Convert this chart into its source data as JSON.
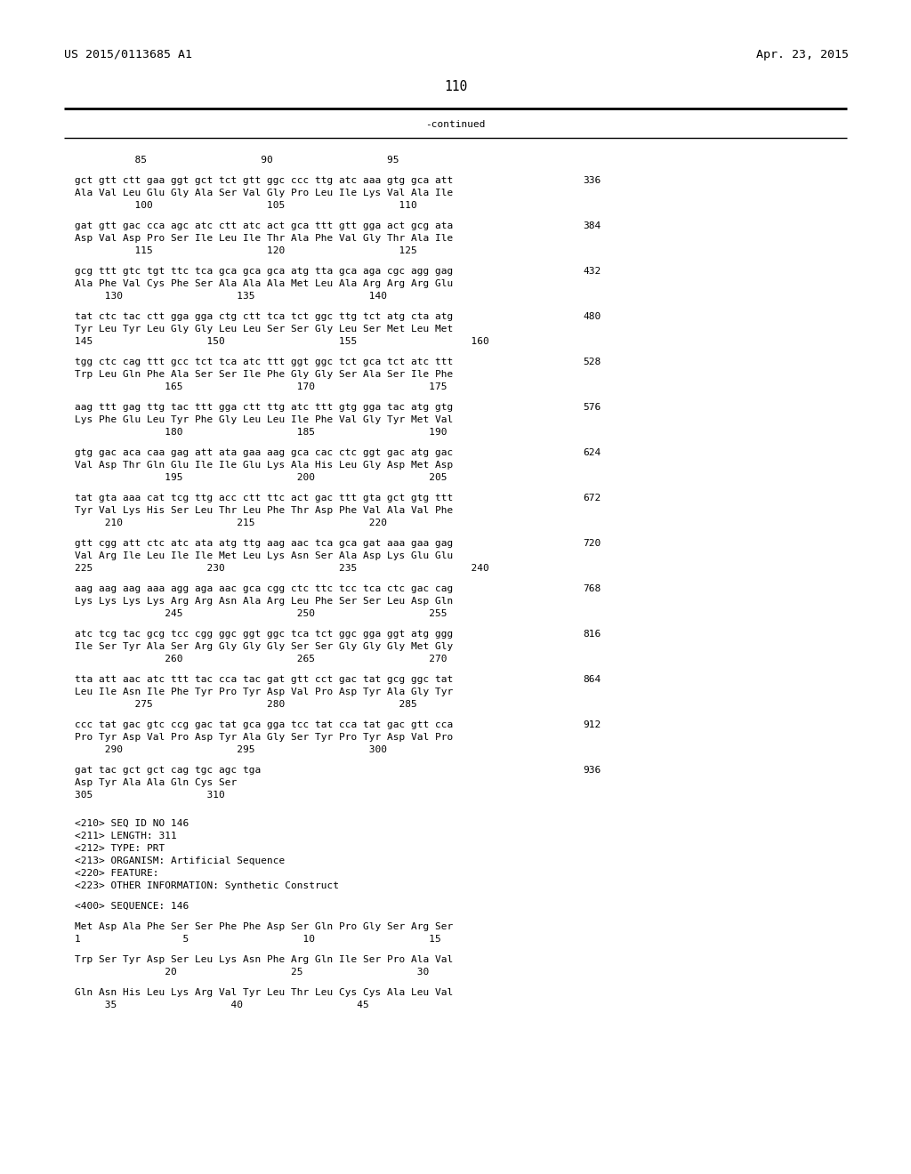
{
  "header_left": "US 2015/0113685 A1",
  "header_right": "Apr. 23, 2015",
  "page_number": "110",
  "continued_label": "-continued",
  "background_color": "#ffffff",
  "text_color": "#000000",
  "lines": [
    {
      "t": "ruler",
      "text": "          85                   90                   95"
    },
    {
      "t": "blank"
    },
    {
      "t": "seq",
      "text": "gct gtt ctt gaa ggt gct tct gtt ggc ccc ttg atc aaa gtg gca att",
      "num": "336"
    },
    {
      "t": "aa",
      "text": "Ala Val Leu Glu Gly Ala Ser Val Gly Pro Leu Ile Lys Val Ala Ile"
    },
    {
      "t": "pos",
      "text": "          100                   105                   110"
    },
    {
      "t": "blank"
    },
    {
      "t": "seq",
      "text": "gat gtt gac cca agc atc ctt atc act gca ttt gtt gga act gcg ata",
      "num": "384"
    },
    {
      "t": "aa",
      "text": "Asp Val Asp Pro Ser Ile Leu Ile Thr Ala Phe Val Gly Thr Ala Ile"
    },
    {
      "t": "pos",
      "text": "          115                   120                   125"
    },
    {
      "t": "blank"
    },
    {
      "t": "seq",
      "text": "gcg ttt gtc tgt ttc tca gca gca gca atg tta gca aga cgc agg gag",
      "num": "432"
    },
    {
      "t": "aa",
      "text": "Ala Phe Val Cys Phe Ser Ala Ala Ala Met Leu Ala Arg Arg Arg Glu"
    },
    {
      "t": "pos",
      "text": "     130                   135                   140"
    },
    {
      "t": "blank"
    },
    {
      "t": "seq",
      "text": "tat ctc tac ctt gga gga ctg ctt tca tct ggc ttg tct atg cta atg",
      "num": "480"
    },
    {
      "t": "aa",
      "text": "Tyr Leu Tyr Leu Gly Gly Leu Leu Ser Ser Gly Leu Ser Met Leu Met"
    },
    {
      "t": "pos",
      "text": "145                   150                   155                   160"
    },
    {
      "t": "blank"
    },
    {
      "t": "seq",
      "text": "tgg ctc cag ttt gcc tct tca atc ttt ggt ggc tct gca tct atc ttt",
      "num": "528"
    },
    {
      "t": "aa",
      "text": "Trp Leu Gln Phe Ala Ser Ser Ile Phe Gly Gly Ser Ala Ser Ile Phe"
    },
    {
      "t": "pos",
      "text": "               165                   170                   175"
    },
    {
      "t": "blank"
    },
    {
      "t": "seq",
      "text": "aag ttt gag ttg tac ttt gga ctt ttg atc ttt gtg gga tac atg gtg",
      "num": "576"
    },
    {
      "t": "aa",
      "text": "Lys Phe Glu Leu Tyr Phe Gly Leu Leu Ile Phe Val Gly Tyr Met Val"
    },
    {
      "t": "pos",
      "text": "               180                   185                   190"
    },
    {
      "t": "blank"
    },
    {
      "t": "seq",
      "text": "gtg gac aca caa gag att ata gaa aag gca cac ctc ggt gac atg gac",
      "num": "624"
    },
    {
      "t": "aa",
      "text": "Val Asp Thr Gln Glu Ile Ile Glu Lys Ala His Leu Gly Asp Met Asp"
    },
    {
      "t": "pos",
      "text": "               195                   200                   205"
    },
    {
      "t": "blank"
    },
    {
      "t": "seq",
      "text": "tat gta aaa cat tcg ttg acc ctt ttc act gac ttt gta gct gtg ttt",
      "num": "672"
    },
    {
      "t": "aa",
      "text": "Tyr Val Lys His Ser Leu Thr Leu Phe Thr Asp Phe Val Ala Val Phe"
    },
    {
      "t": "pos",
      "text": "     210                   215                   220"
    },
    {
      "t": "blank"
    },
    {
      "t": "seq",
      "text": "gtt cgg att ctc atc ata atg ttg aag aac tca gca gat aaa gaa gag",
      "num": "720"
    },
    {
      "t": "aa",
      "text": "Val Arg Ile Leu Ile Ile Met Leu Lys Asn Ser Ala Asp Lys Glu Glu"
    },
    {
      "t": "pos",
      "text": "225                   230                   235                   240"
    },
    {
      "t": "blank"
    },
    {
      "t": "seq",
      "text": "aag aag aag aaa agg aga aac gca cgg ctc ttc tcc tca ctc gac cag",
      "num": "768"
    },
    {
      "t": "aa",
      "text": "Lys Lys Lys Lys Arg Arg Asn Ala Arg Leu Phe Ser Ser Leu Asp Gln"
    },
    {
      "t": "pos",
      "text": "               245                   250                   255"
    },
    {
      "t": "blank"
    },
    {
      "t": "seq",
      "text": "atc tcg tac gcg tcc cgg ggc ggt ggc tca tct ggc gga ggt atg ggg",
      "num": "816"
    },
    {
      "t": "aa",
      "text": "Ile Ser Tyr Ala Ser Arg Gly Gly Gly Ser Ser Gly Gly Gly Met Gly"
    },
    {
      "t": "pos",
      "text": "               260                   265                   270"
    },
    {
      "t": "blank"
    },
    {
      "t": "seq",
      "text": "tta att aac atc ttt tac cca tac gat gtt cct gac tat gcg ggc tat",
      "num": "864"
    },
    {
      "t": "aa",
      "text": "Leu Ile Asn Ile Phe Tyr Pro Tyr Asp Val Pro Asp Tyr Ala Gly Tyr"
    },
    {
      "t": "pos",
      "text": "          275                   280                   285"
    },
    {
      "t": "blank"
    },
    {
      "t": "seq",
      "text": "ccc tat gac gtc ccg gac tat gca gga tcc tat cca tat gac gtt cca",
      "num": "912"
    },
    {
      "t": "aa",
      "text": "Pro Tyr Asp Val Pro Asp Tyr Ala Gly Ser Tyr Pro Tyr Asp Val Pro"
    },
    {
      "t": "pos",
      "text": "     290                   295                   300"
    },
    {
      "t": "blank"
    },
    {
      "t": "seq",
      "text": "gat tac gct gct cag tgc agc tga",
      "num": "936"
    },
    {
      "t": "aa",
      "text": "Asp Tyr Ala Ala Gln Cys Ser"
    },
    {
      "t": "pos",
      "text": "305                   310"
    },
    {
      "t": "blank"
    },
    {
      "t": "blank"
    },
    {
      "t": "info",
      "text": "<210> SEQ ID NO 146"
    },
    {
      "t": "info",
      "text": "<211> LENGTH: 311"
    },
    {
      "t": "info",
      "text": "<212> TYPE: PRT"
    },
    {
      "t": "info",
      "text": "<213> ORGANISM: Artificial Sequence"
    },
    {
      "t": "info",
      "text": "<220> FEATURE:"
    },
    {
      "t": "info",
      "text": "<223> OTHER INFORMATION: Synthetic Construct"
    },
    {
      "t": "blank"
    },
    {
      "t": "info",
      "text": "<400> SEQUENCE: 146"
    },
    {
      "t": "blank"
    },
    {
      "t": "aa",
      "text": "Met Asp Ala Phe Ser Ser Phe Phe Asp Ser Gln Pro Gly Ser Arg Ser"
    },
    {
      "t": "pos",
      "text": "1                 5                   10                   15"
    },
    {
      "t": "blank"
    },
    {
      "t": "aa",
      "text": "Trp Ser Tyr Asp Ser Leu Lys Asn Phe Arg Gln Ile Ser Pro Ala Val"
    },
    {
      "t": "pos",
      "text": "               20                   25                   30"
    },
    {
      "t": "blank"
    },
    {
      "t": "aa",
      "text": "Gln Asn His Leu Lys Arg Val Tyr Leu Thr Leu Cys Cys Ala Leu Val"
    },
    {
      "t": "pos",
      "text": "     35                   40                   45"
    }
  ]
}
